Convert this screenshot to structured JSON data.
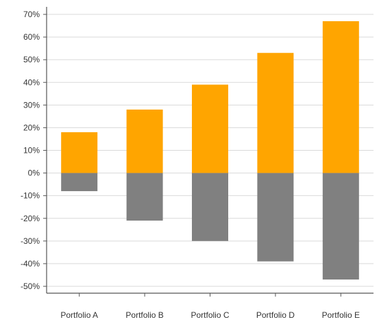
{
  "chart_data": {
    "type": "bar",
    "categories": [
      "Portfolio A",
      "Portfolio B",
      "Portfolio C",
      "Portfolio D",
      "Portfolio E"
    ],
    "series": [
      {
        "color": "#FFA500",
        "values": [
          18,
          28,
          39,
          53,
          67
        ]
      },
      {
        "color": "#808080",
        "values": [
          -8,
          -21,
          -30,
          -39,
          -47
        ]
      }
    ],
    "y_ticks": [
      "70%",
      "60%",
      "50%",
      "40%",
      "30%",
      "20%",
      "10%",
      "0%",
      "-10%",
      "-20%",
      "-30%",
      "-40%",
      "-50%"
    ],
    "ylim": [
      -50,
      70
    ],
    "title": "",
    "xlabel": "",
    "ylabel": "",
    "grid": true,
    "grid_color": "#d9d9d9",
    "axis_color": "#555555"
  }
}
